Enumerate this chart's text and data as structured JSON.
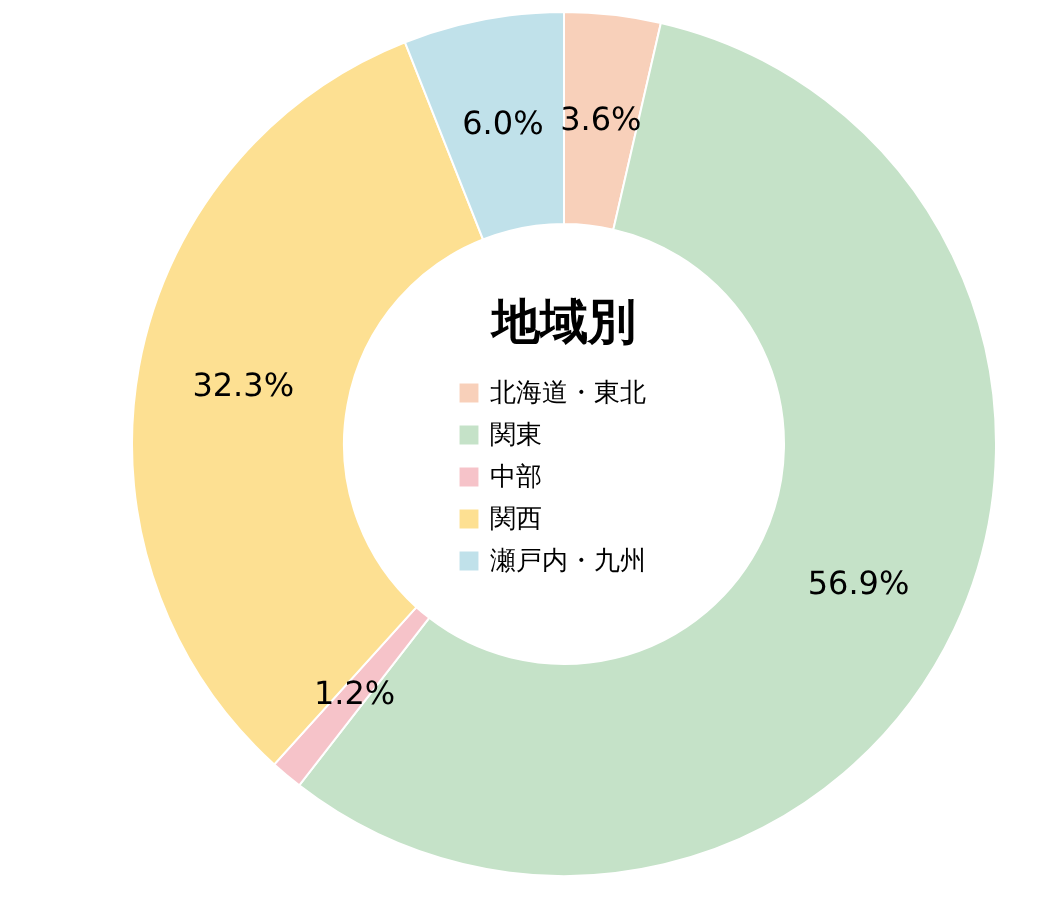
{
  "chart_data": {
    "type": "donut",
    "title": "地域別",
    "categories": [
      "北海道・東北",
      "関東",
      "中部",
      "関西",
      "瀬戸内・九州"
    ],
    "values": [
      3.6,
      56.9,
      1.2,
      32.3,
      6.0
    ],
    "colors": [
      "#f8d0ba",
      "#c5e2c8",
      "#f6c3c9",
      "#fde092",
      "#c0e1ea"
    ],
    "value_labels": [
      "3.6%",
      "56.9%",
      "1.2%",
      "32.3%",
      "6.0%"
    ],
    "legend": "center"
  }
}
